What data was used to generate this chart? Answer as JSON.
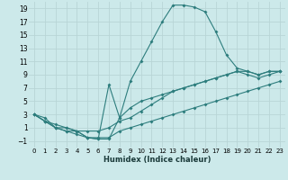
{
  "background_color": "#cce9ea",
  "grid_color": "#b8d5d6",
  "line_color": "#2d7d7d",
  "xlabel": "Humidex (Indice chaleur)",
  "xlim": [
    -0.5,
    23.5
  ],
  "ylim": [
    -2,
    20
  ],
  "xticks": [
    0,
    1,
    2,
    3,
    4,
    5,
    6,
    7,
    8,
    9,
    10,
    11,
    12,
    13,
    14,
    15,
    16,
    17,
    18,
    19,
    20,
    21,
    22,
    23
  ],
  "yticks": [
    -1,
    1,
    3,
    5,
    7,
    9,
    11,
    13,
    15,
    17,
    19
  ],
  "series1": [
    3,
    2.5,
    1,
    1,
    0.5,
    -0.5,
    -0.7,
    -0.7,
    2.5,
    8,
    11,
    14,
    17,
    19.5,
    19.5,
    19.2,
    18.5,
    15.5,
    12,
    10,
    9.5,
    9,
    9.5,
    9.5
  ],
  "series2": [
    3,
    2,
    1,
    0.5,
    0.5,
    -0.5,
    -0.7,
    7.5,
    2.5,
    4,
    5,
    5.5,
    6,
    6.5,
    7,
    7.5,
    8,
    8.5,
    9,
    9.5,
    9,
    8.5,
    9,
    9.5
  ],
  "series3": [
    3,
    2,
    1.5,
    1,
    0.5,
    0.5,
    0.5,
    1.0,
    2,
    2.5,
    3.5,
    4.5,
    5.5,
    6.5,
    7,
    7.5,
    8,
    8.5,
    9,
    9.5,
    9.5,
    9,
    9.5,
    9.5
  ],
  "series4": [
    3,
    2,
    1,
    0.5,
    0,
    -0.5,
    -0.5,
    -0.5,
    0.5,
    1,
    1.5,
    2,
    2.5,
    3,
    3.5,
    4,
    4.5,
    5,
    5.5,
    6,
    6.5,
    7,
    7.5,
    8
  ]
}
